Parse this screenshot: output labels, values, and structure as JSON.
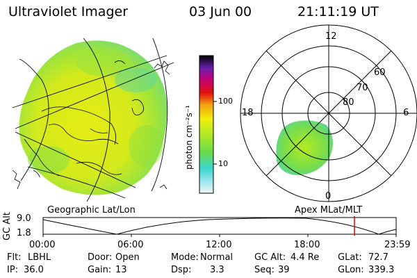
{
  "header": {
    "title": "Ultraviolet Imager",
    "date": "03 Jun 00",
    "time": "21:11:19 UT"
  },
  "colorbar": {
    "label": "photon cm⁻²s⁻¹",
    "ticks": [
      "100",
      "10"
    ]
  },
  "polar": {
    "hours": [
      "12",
      "18",
      "6",
      "0"
    ],
    "latitudes": [
      "60",
      "70",
      "80"
    ]
  },
  "left_caption": "Geographic Lat/Lon",
  "right_caption": "Apex MLat/MLT",
  "altitude": {
    "axis_label": "GC Alt",
    "ticks": [
      "9.0",
      "1.8"
    ],
    "time_ticks": [
      "00:00",
      "06:00",
      "12:00",
      "18:00",
      "23:59"
    ]
  },
  "info": {
    "rows": [
      [
        {
          "k": "Flt:",
          "v": "LBHL"
        },
        {
          "k": "Door:",
          "v": "Open"
        },
        {
          "k": "Mode:",
          "v": "Normal"
        },
        {
          "k": "GC Alt:",
          "v": "4.4 Re"
        },
        {
          "k": "GLat:",
          "v": "72.7"
        }
      ],
      [
        {
          "k": "IP:",
          "v": "36.0"
        },
        {
          "k": "Gain:",
          "v": "13"
        },
        {
          "k": "Dsp:",
          "v": "3.3"
        },
        {
          "k": "Seq:",
          "v": "39"
        },
        {
          "k": "GLon:",
          "v": "339.3"
        }
      ]
    ]
  },
  "colors": {
    "yellow": "#e8ee10",
    "green": "#8fe23a",
    "cyan": "#3fd8c8",
    "marker": "#dd0000"
  }
}
